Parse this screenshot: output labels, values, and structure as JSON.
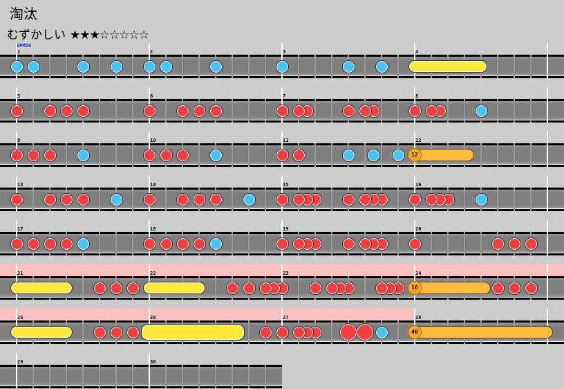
{
  "title": "淘汰",
  "difficulty": {
    "label": "むずかしい",
    "stars": "★★★☆☆☆☆☆",
    "level": 3,
    "max_level": 8
  },
  "bpm_label": "BPM59",
  "colors": {
    "don": "#f33f3f",
    "ka": "#45c4ff",
    "roll": "#ffe93c",
    "balloon": "#ffbb3c",
    "gogo": "#ffc0c0",
    "background": "#cccccc"
  },
  "subdivisions_per_measure": 8,
  "measures": [
    {
      "n": "1",
      "notes": [
        {
          "t": "ka",
          "p": 0
        },
        {
          "t": "ka",
          "p": 1
        },
        {
          "t": "ka",
          "p": 4
        },
        {
          "t": "ka",
          "p": 6
        }
      ]
    },
    {
      "n": "2",
      "notes": [
        {
          "t": "ka",
          "p": 0
        },
        {
          "t": "ka",
          "p": 1
        },
        {
          "t": "ka",
          "p": 4
        }
      ]
    },
    {
      "n": "3",
      "notes": [
        {
          "t": "ka",
          "p": 0
        },
        {
          "t": "ka",
          "p": 4
        },
        {
          "t": "ka",
          "p": 6
        }
      ]
    },
    {
      "n": "4",
      "notes": [
        {
          "t": "roll",
          "p": 0,
          "e": 4
        }
      ]
    },
    {
      "n": "5",
      "notes": [
        {
          "t": "don",
          "p": 0
        },
        {
          "t": "don",
          "p": 2
        },
        {
          "t": "don",
          "p": 3
        },
        {
          "t": "don",
          "p": 4
        }
      ]
    },
    {
      "n": "6",
      "notes": [
        {
          "t": "don",
          "p": 0
        },
        {
          "t": "don",
          "p": 2
        },
        {
          "t": "don",
          "p": 3
        },
        {
          "t": "don",
          "p": 4
        }
      ]
    },
    {
      "n": "7",
      "notes": [
        {
          "t": "don",
          "p": 0
        },
        {
          "t": "don",
          "p": 1
        },
        {
          "t": "don",
          "p": 1.5
        },
        {
          "t": "don",
          "p": 4
        },
        {
          "t": "don",
          "p": 5
        },
        {
          "t": "don",
          "p": 5.5
        }
      ]
    },
    {
      "n": "8",
      "notes": [
        {
          "t": "don",
          "p": 0
        },
        {
          "t": "don",
          "p": 1
        },
        {
          "t": "don",
          "p": 1.5
        },
        {
          "t": "ka",
          "p": 4
        }
      ]
    },
    {
      "n": "9",
      "notes": [
        {
          "t": "don",
          "p": 0
        },
        {
          "t": "don",
          "p": 1
        },
        {
          "t": "don",
          "p": 2
        },
        {
          "t": "ka",
          "p": 4
        }
      ]
    },
    {
      "n": "10",
      "notes": [
        {
          "t": "don",
          "p": 0
        },
        {
          "t": "don",
          "p": 1
        },
        {
          "t": "don",
          "p": 2
        },
        {
          "t": "ka",
          "p": 4
        }
      ]
    },
    {
      "n": "11",
      "notes": [
        {
          "t": "don",
          "p": 0
        },
        {
          "t": "don",
          "p": 1
        },
        {
          "t": "ka",
          "p": 4
        },
        {
          "t": "ka",
          "p": 5.5
        },
        {
          "t": "ka",
          "p": 7
        }
      ]
    },
    {
      "n": "12",
      "notes": [
        {
          "t": "balloon",
          "p": 0,
          "e": 3.25,
          "count": "12"
        }
      ]
    },
    {
      "n": "13",
      "notes": [
        {
          "t": "don",
          "p": 0
        },
        {
          "t": "don",
          "p": 2
        },
        {
          "t": "don",
          "p": 3
        },
        {
          "t": "don",
          "p": 4
        },
        {
          "t": "ka",
          "p": 6
        }
      ]
    },
    {
      "n": "14",
      "notes": [
        {
          "t": "don",
          "p": 0
        },
        {
          "t": "don",
          "p": 2
        },
        {
          "t": "don",
          "p": 3
        },
        {
          "t": "don",
          "p": 4
        },
        {
          "t": "ka",
          "p": 6
        }
      ]
    },
    {
      "n": "15",
      "notes": [
        {
          "t": "don",
          "p": 0
        },
        {
          "t": "don",
          "p": 1
        },
        {
          "t": "don",
          "p": 1.5
        },
        {
          "t": "don",
          "p": 2
        },
        {
          "t": "don",
          "p": 4
        },
        {
          "t": "don",
          "p": 5
        },
        {
          "t": "don",
          "p": 5.5
        },
        {
          "t": "don",
          "p": 6
        }
      ]
    },
    {
      "n": "16",
      "notes": [
        {
          "t": "don",
          "p": 0
        },
        {
          "t": "don",
          "p": 1
        },
        {
          "t": "don",
          "p": 1.5
        },
        {
          "t": "don",
          "p": 2
        },
        {
          "t": "ka",
          "p": 4
        }
      ]
    },
    {
      "n": "17",
      "notes": [
        {
          "t": "don",
          "p": 0
        },
        {
          "t": "don",
          "p": 1
        },
        {
          "t": "don",
          "p": 2
        },
        {
          "t": "don",
          "p": 3
        },
        {
          "t": "ka",
          "p": 4
        }
      ]
    },
    {
      "n": "18",
      "notes": [
        {
          "t": "don",
          "p": 0
        },
        {
          "t": "don",
          "p": 1
        },
        {
          "t": "don",
          "p": 2
        },
        {
          "t": "don",
          "p": 3
        },
        {
          "t": "ka",
          "p": 4
        }
      ]
    },
    {
      "n": "19",
      "notes": [
        {
          "t": "don",
          "p": 0
        },
        {
          "t": "don",
          "p": 1
        },
        {
          "t": "don",
          "p": 1.5
        },
        {
          "t": "don",
          "p": 2
        },
        {
          "t": "don",
          "p": 4
        },
        {
          "t": "don",
          "p": 5
        },
        {
          "t": "don",
          "p": 5.5
        },
        {
          "t": "don",
          "p": 6
        }
      ]
    },
    {
      "n": "20",
      "notes": [
        {
          "t": "don",
          "p": 0
        },
        {
          "t": "don",
          "p": 5
        },
        {
          "t": "don",
          "p": 6
        },
        {
          "t": "don",
          "p": 7
        }
      ]
    },
    {
      "n": "21",
      "gogo": true,
      "notes": [
        {
          "t": "roll",
          "p": 0,
          "e": 3
        },
        {
          "t": "don",
          "p": 5
        },
        {
          "t": "don",
          "p": 6
        },
        {
          "t": "don",
          "p": 7
        }
      ]
    },
    {
      "n": "22",
      "gogo": true,
      "notes": [
        {
          "t": "roll",
          "p": 0,
          "e": 3
        },
        {
          "t": "don",
          "p": 5
        },
        {
          "t": "don",
          "p": 6
        },
        {
          "t": "don",
          "p": 7
        },
        {
          "t": "don",
          "p": 7.5
        }
      ]
    },
    {
      "n": "23",
      "gogo": true,
      "notes": [
        {
          "t": "don",
          "p": 0
        },
        {
          "t": "don",
          "p": 2
        },
        {
          "t": "don",
          "p": 3
        },
        {
          "t": "don",
          "p": 3.5
        },
        {
          "t": "don",
          "p": 4
        },
        {
          "t": "don",
          "p": 6
        },
        {
          "t": "don",
          "p": 6.5
        },
        {
          "t": "don",
          "p": 7
        }
      ]
    },
    {
      "n": "24",
      "gogo": true,
      "notes": [
        {
          "t": "balloon",
          "p": 0,
          "e": 4.25,
          "count": "16"
        },
        {
          "t": "don",
          "p": 5
        },
        {
          "t": "don",
          "p": 6
        },
        {
          "t": "don",
          "p": 7
        }
      ]
    },
    {
      "n": "25",
      "gogo": true,
      "notes": [
        {
          "t": "roll",
          "p": 0,
          "e": 3
        },
        {
          "t": "don",
          "p": 5
        },
        {
          "t": "don",
          "p": 6
        },
        {
          "t": "don",
          "p": 7
        }
      ]
    },
    {
      "n": "26",
      "gogo": true,
      "notes": [
        {
          "t": "big-roll",
          "p": 0,
          "e": 5.25
        },
        {
          "t": "don",
          "p": 7
        }
      ]
    },
    {
      "n": "27",
      "gogo": true,
      "notes": [
        {
          "t": "don",
          "p": 0
        },
        {
          "t": "don",
          "p": 1
        },
        {
          "t": "don",
          "p": 1.5
        },
        {
          "t": "don",
          "p": 2
        },
        {
          "t": "big-don",
          "p": 4
        },
        {
          "t": "big-don",
          "p": 5
        },
        {
          "t": "ka",
          "p": 6
        }
      ]
    },
    {
      "n": "28",
      "notes": [
        {
          "t": "balloon",
          "p": 0,
          "e": 8,
          "count": "40"
        }
      ]
    },
    {
      "n": "29",
      "notes": []
    },
    {
      "n": "30",
      "notes": []
    }
  ]
}
